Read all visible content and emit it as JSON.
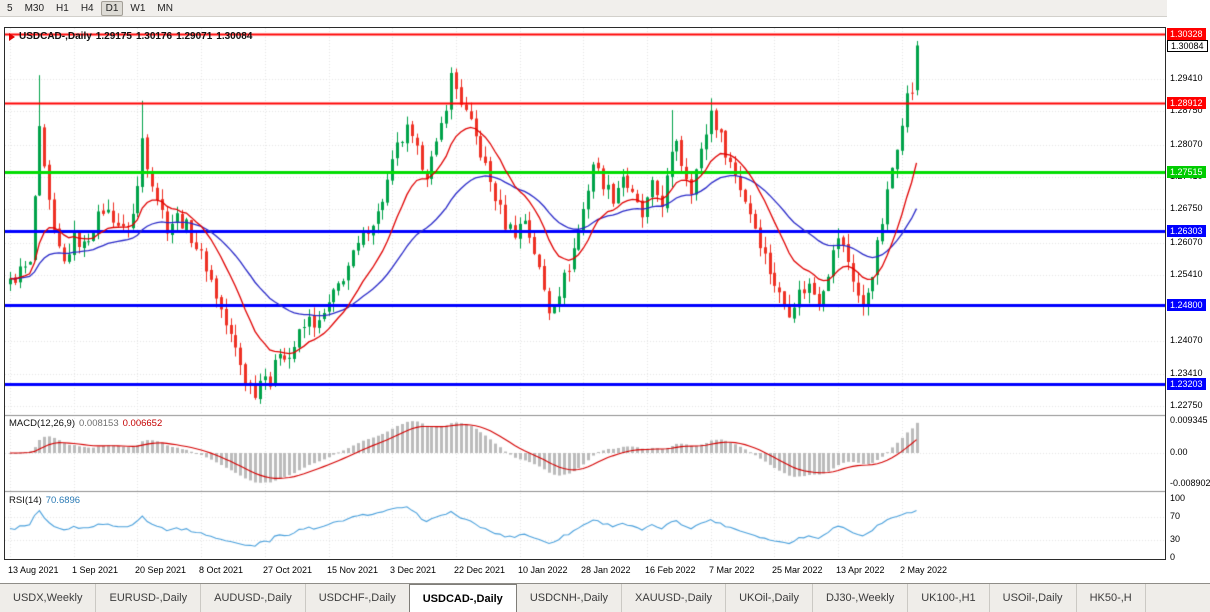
{
  "toolbar": {
    "timeframes": [
      {
        "label": "5",
        "active": false
      },
      {
        "label": "M30",
        "active": false
      },
      {
        "label": "H1",
        "active": false
      },
      {
        "label": "H4",
        "active": false
      },
      {
        "label": "D1",
        "active": true
      },
      {
        "label": "W1",
        "active": false
      },
      {
        "label": "MN",
        "active": false
      }
    ]
  },
  "chart": {
    "title": {
      "symbol_period": "USDCAD-,Daily",
      "open": "1.29175",
      "high": "1.30176",
      "low": "1.29071",
      "close": "1.30084"
    },
    "range": {
      "max": 1.3044,
      "min": 1.2261
    },
    "bar_count": 186,
    "bar_step": 4.9,
    "bars_per_label": 13,
    "levels": [
      {
        "value": 1.30328,
        "color": "#FF0000",
        "width": 2
      },
      {
        "value": 1.28912,
        "color": "#FF0000",
        "width": 2
      },
      {
        "value": 1.27515,
        "color": "#00DD00",
        "width": 3
      },
      {
        "value": 1.26303,
        "color": "#0000FF",
        "width": 3
      },
      {
        "value": 1.248,
        "color": "#0000FF",
        "width": 3
      },
      {
        "value": 1.23203,
        "color": "#0000FF",
        "width": 3
      }
    ],
    "price_axis": {
      "grid_labels": [
        {
          "label": "1.29410",
          "value": 1.2941
        },
        {
          "label": "1.28750",
          "value": 1.2875
        },
        {
          "label": "1.28070",
          "value": 1.2807
        },
        {
          "label": "1.27410",
          "value": 1.2741
        },
        {
          "label": "1.26750",
          "value": 1.2675
        },
        {
          "label": "1.26070",
          "value": 1.2607
        },
        {
          "label": "1.25410",
          "value": 1.2541
        },
        {
          "label": "1.24070",
          "value": 1.2407
        },
        {
          "label": "1.23410",
          "value": 1.2341
        },
        {
          "label": "1.22750",
          "value": 1.2275
        }
      ],
      "badges": [
        {
          "label": "1.30328",
          "value": 1.30328,
          "type": "level",
          "color": "#FF0000",
          "text": "#FFFFFF"
        },
        {
          "label": "1.30084",
          "value": 1.30084,
          "type": "current",
          "color": "#FFFFFF",
          "text": "#000000"
        },
        {
          "label": "1.28912",
          "value": 1.28912,
          "type": "level",
          "color": "#FF0000",
          "text": "#FFFFFF"
        },
        {
          "label": "1.27515",
          "value": 1.27515,
          "type": "level",
          "color": "#00CC00",
          "text": "#FFFFFF"
        },
        {
          "label": "1.26303",
          "value": 1.26303,
          "type": "level",
          "color": "#0000FF",
          "text": "#FFFFFF"
        },
        {
          "label": "1.24800",
          "value": 1.248,
          "type": "level",
          "color": "#0000FF",
          "text": "#FFFFFF"
        },
        {
          "label": "1.23203",
          "value": 1.23203,
          "type": "level",
          "color": "#0000FF",
          "text": "#FFFFFF"
        }
      ]
    },
    "dates": [
      "13 Aug 2021",
      "1 Sep 2021",
      "20 Sep 2021",
      "8 Oct 2021",
      "27 Oct 2021",
      "15 Nov 2021",
      "3 Dec 2021",
      "22 Dec 2021",
      "10 Jan 2022",
      "28 Jan 2022",
      "16 Feb 2022",
      "7 Mar 2022",
      "25 Mar 2022",
      "13 Apr 2022",
      "2 May 2022"
    ],
    "price_path": [
      [
        0,
        1.2525
      ],
      [
        2,
        1.255
      ],
      [
        4,
        1.256
      ],
      [
        5,
        1.27
      ],
      [
        6,
        1.283
      ],
      [
        7,
        1.275
      ],
      [
        9,
        1.262
      ],
      [
        11,
        1.2565
      ],
      [
        13,
        1.262
      ],
      [
        15,
        1.26
      ],
      [
        17,
        1.264
      ],
      [
        19,
        1.2675
      ],
      [
        21,
        1.266
      ],
      [
        23,
        1.263
      ],
      [
        25,
        1.2665
      ],
      [
        26,
        1.272
      ],
      [
        27,
        1.282
      ],
      [
        28,
        1.277
      ],
      [
        30,
        1.27
      ],
      [
        32,
        1.264
      ],
      [
        34,
        1.266
      ],
      [
        36,
        1.264
      ],
      [
        38,
        1.26
      ],
      [
        40,
        1.256
      ],
      [
        42,
        1.25
      ],
      [
        44,
        1.244
      ],
      [
        46,
        1.239
      ],
      [
        48,
        1.233
      ],
      [
        50,
        1.2305
      ],
      [
        52,
        1.235
      ],
      [
        53,
        1.232
      ],
      [
        55,
        1.239
      ],
      [
        57,
        1.2375
      ],
      [
        59,
        1.242
      ],
      [
        61,
        1.245
      ],
      [
        63,
        1.244
      ],
      [
        65,
        1.248
      ],
      [
        67,
        1.252
      ],
      [
        69,
        1.256
      ],
      [
        71,
        1.26
      ],
      [
        73,
        1.264
      ],
      [
        75,
        1.2665
      ],
      [
        77,
        1.273
      ],
      [
        79,
        1.28
      ],
      [
        81,
        1.2835
      ],
      [
        83,
        1.279
      ],
      [
        85,
        1.275
      ],
      [
        87,
        1.28
      ],
      [
        89,
        1.289
      ],
      [
        90,
        1.2945
      ],
      [
        91,
        1.292
      ],
      [
        93,
        1.287
      ],
      [
        95,
        1.282
      ],
      [
        97,
        1.276
      ],
      [
        99,
        1.27
      ],
      [
        101,
        1.2645
      ],
      [
        103,
        1.263
      ],
      [
        105,
        1.2655
      ],
      [
        107,
        1.259
      ],
      [
        109,
        1.251
      ],
      [
        110,
        1.247
      ],
      [
        112,
        1.251
      ],
      [
        114,
        1.256
      ],
      [
        116,
        1.263
      ],
      [
        118,
        1.272
      ],
      [
        119,
        1.277
      ],
      [
        121,
        1.273
      ],
      [
        123,
        1.27
      ],
      [
        125,
        1.2745
      ],
      [
        127,
        1.27
      ],
      [
        129,
        1.266
      ],
      [
        131,
        1.272
      ],
      [
        133,
        1.269
      ],
      [
        135,
        1.278
      ],
      [
        136,
        1.282
      ],
      [
        137,
        1.277
      ],
      [
        139,
        1.272
      ],
      [
        141,
        1.279
      ],
      [
        143,
        1.2875
      ],
      [
        145,
        1.282
      ],
      [
        147,
        1.277
      ],
      [
        149,
        1.272
      ],
      [
        151,
        1.267
      ],
      [
        153,
        1.261
      ],
      [
        155,
        1.255
      ],
      [
        157,
        1.25
      ],
      [
        159,
        1.247
      ],
      [
        161,
        1.2505
      ],
      [
        163,
        1.252
      ],
      [
        165,
        1.249
      ],
      [
        167,
        1.255
      ],
      [
        169,
        1.262
      ],
      [
        171,
        1.257
      ],
      [
        173,
        1.25
      ],
      [
        174,
        1.247
      ],
      [
        176,
        1.255
      ],
      [
        178,
        1.265
      ],
      [
        180,
        1.276
      ],
      [
        182,
        1.286
      ],
      [
        183,
        1.2905
      ],
      [
        184,
        1.2917
      ],
      [
        185,
        1.30084
      ]
    ],
    "extremes": {
      "6": {
        "h": 1.2948
      },
      "27": {
        "h": 1.2896
      },
      "50": {
        "l": 1.2288
      },
      "90": {
        "h": 1.2964
      },
      "110": {
        "l": 1.245
      },
      "135": {
        "h": 1.2877
      },
      "143": {
        "h": 1.2901
      },
      "174": {
        "l": 1.2459
      }
    },
    "last_bar": {
      "o": 1.29175,
      "h": 1.30176,
      "l": 1.29071,
      "c": 1.30084
    },
    "moving_averages": [
      {
        "period": 13,
        "method": "ema",
        "color": "#E00000"
      },
      {
        "period": 34,
        "method": "ema",
        "color": "#2929C8"
      }
    ],
    "colors": {
      "up": "#00A24A",
      "down": "#EE3124",
      "grid": "#E4E4E4",
      "border": "#2B2B2B"
    }
  },
  "macd": {
    "name": "MACD(12,26,9)",
    "value_main": "0.008153",
    "value_signal": "0.006652",
    "axis": [
      {
        "label": "0.009345",
        "value": 0.009345
      },
      {
        "label": "0.00",
        "value": 0
      },
      {
        "label": "-0.008902",
        "value": -0.008902
      }
    ],
    "display_amp": 0.0105,
    "colors": {
      "histogram": "#BBBBBB",
      "signal": "#D40000"
    }
  },
  "rsi": {
    "name": "RSI(14)",
    "value": "70.6896",
    "axis": [
      {
        "label": "100",
        "value": 100
      },
      {
        "label": "70",
        "value": 70
      },
      {
        "label": "30",
        "value": 30
      },
      {
        "label": "0",
        "value": 0
      }
    ],
    "levels": [
      70,
      30
    ],
    "color": "#4AA0DC"
  },
  "tabs": {
    "active_index": 4,
    "items": [
      "USDX,Weekly",
      "EURUSD-,Daily",
      "AUDUSD-,Daily",
      "USDCHF-,Daily",
      "USDCAD-,Daily",
      "USDCNH-,Daily",
      "XAUUSD-,Daily",
      "UKOil-,Daily",
      "DJ30-,Weekly",
      "UK100-,H1",
      "USOil-,Daily",
      "HK50-,H"
    ]
  }
}
